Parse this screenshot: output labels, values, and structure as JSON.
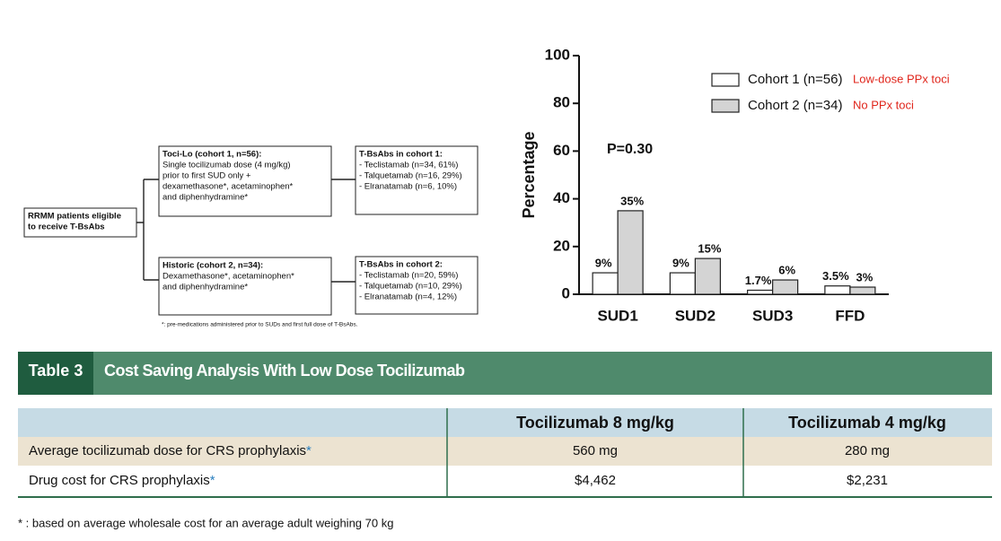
{
  "diagram": {
    "nodes": [
      {
        "lines": [
          "RRMM patients eligible",
          "to receive T-BsAbs"
        ]
      },
      {
        "lines": [
          "Toci-Lo (cohort 1, n=56):",
          "Single tocilizumab dose (4 mg/kg)",
          "prior to first SUD only +",
          "dexamethasone*, acetaminophen*",
          "and diphenhydramine*"
        ]
      },
      {
        "lines": [
          "Historic (cohort 2, n=34):",
          "Dexamethasone*, acetaminophen*",
          "and diphenhydramine*"
        ]
      },
      {
        "lines": [
          "T-BsAbs in cohort 1:",
          "- Teclistamab (n=34, 61%)",
          "- Talquetamab (n=16, 29%)",
          "- Elranatamab (n=6, 10%)"
        ]
      },
      {
        "lines": [
          "T-BsAbs in cohort 2:",
          "- Teclistamab (n=20, 59%)",
          "- Talquetamab (n=10, 29%)",
          "- Elranatamab (n=4, 12%)"
        ]
      }
    ],
    "footnote": "*: pre-medications administered prior to SUDs and first full dose of T-BsAbs."
  },
  "chart_data": {
    "type": "bar",
    "ylabel": "Percentage",
    "categories": [
      "SUD1",
      "SUD2",
      "SUD3",
      "FFD"
    ],
    "series": [
      {
        "name": "Cohort 1 (n=56)",
        "color": "#ffffff",
        "values": [
          9,
          9,
          1.7,
          3.5
        ],
        "value_labels": [
          "9%",
          "9%",
          "1.7%",
          "3.5%"
        ],
        "note": "Low-dose PPx toci",
        "note_color": "#e0261c"
      },
      {
        "name": "Cohort 2 (n=34)",
        "color": "#d4d4d4",
        "values": [
          35,
          15,
          6,
          3
        ],
        "value_labels": [
          "35%",
          "15%",
          "6%",
          "3%"
        ],
        "note": "No PPx toci",
        "note_color": "#e0261c"
      }
    ],
    "ylim": [
      0,
      100
    ],
    "yticks": [
      0,
      20,
      40,
      60,
      80,
      100
    ],
    "grid": false,
    "legend": "top-right",
    "annotations": [
      "P=0.30"
    ]
  },
  "table": {
    "label": "Table 3",
    "title": "Cost Saving Analysis With Low Dose Tocilizumab",
    "columns": [
      "Tocilizumab 8 mg/kg",
      "Tocilizumab 4 mg/kg"
    ],
    "rows": [
      {
        "label": "Average tocilizumab dose for CRS prophylaxis",
        "mark": "*",
        "cells": [
          "560 mg",
          "280 mg"
        ]
      },
      {
        "label": "Drug cost for CRS prophylaxis",
        "mark": "*",
        "cells": [
          "$4,462",
          "$2,231"
        ]
      }
    ],
    "footnote": "* : based on average wholesale cost for an average adult weighing 70 kg"
  }
}
